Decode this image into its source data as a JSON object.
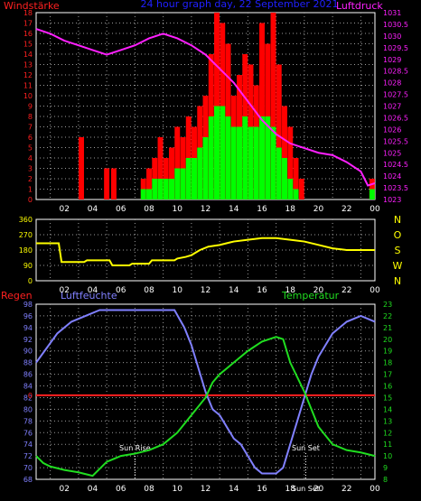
{
  "title": "24 hour graph day, 22 September 2021",
  "colors": {
    "wind_axis": "#ff2020",
    "pressure": "#ff20ff",
    "title": "#2020ff",
    "dir_axis": "#ffff00",
    "dir_line": "#ffff00",
    "humidity": "#8080ff",
    "temperature": "#20dd20",
    "rain": "#ff2020",
    "gust": "#ff0000",
    "avg_wind": "#00ff00",
    "frame": "#ffffff",
    "grid": "#9a9a9a"
  },
  "x_ticks": [
    "02",
    "04",
    "06",
    "08",
    "10",
    "12",
    "14",
    "16",
    "18",
    "20",
    "22",
    "00"
  ],
  "chart_data": [
    {
      "type": "bar",
      "name": "wind_pressure",
      "y_left_label": "Windstärke",
      "y_right_label": "Luftdruck",
      "y_left_ticks": [
        "0",
        "1",
        "2",
        "3",
        "4",
        "5",
        "6",
        "7",
        "8",
        "9",
        "10",
        "11",
        "12",
        "13",
        "14",
        "15",
        "16",
        "17",
        "18"
      ],
      "y_right_ticks": [
        "1031",
        "1030.5",
        "1030",
        "1029.5",
        "1029",
        "1028.5",
        "1028",
        "1027.5",
        "1027",
        "1026.5",
        "1026",
        "1025.5",
        "1025",
        "1024.5",
        "1024",
        "1023.5",
        "1023"
      ],
      "ylim_left": [
        0,
        18
      ],
      "ylim_right": [
        1023,
        1031
      ],
      "gust": [
        [
          3.2,
          6
        ],
        [
          5.0,
          3
        ],
        [
          5.5,
          3
        ],
        [
          7.6,
          2
        ],
        [
          8.0,
          3
        ],
        [
          8.4,
          4
        ],
        [
          8.8,
          6
        ],
        [
          9.2,
          4
        ],
        [
          9.6,
          5
        ],
        [
          10.0,
          7
        ],
        [
          10.4,
          6
        ],
        [
          10.8,
          8
        ],
        [
          11.2,
          7
        ],
        [
          11.6,
          9
        ],
        [
          12.0,
          10
        ],
        [
          12.4,
          14
        ],
        [
          12.8,
          18
        ],
        [
          13.2,
          17
        ],
        [
          13.6,
          15
        ],
        [
          14.0,
          10
        ],
        [
          14.4,
          12
        ],
        [
          14.8,
          14
        ],
        [
          15.2,
          13
        ],
        [
          15.6,
          11
        ],
        [
          16.0,
          17
        ],
        [
          16.4,
          15
        ],
        [
          16.8,
          18
        ],
        [
          17.2,
          13
        ],
        [
          17.6,
          9
        ],
        [
          18.0,
          7
        ],
        [
          18.4,
          4
        ],
        [
          18.8,
          2
        ],
        [
          23.8,
          2
        ]
      ],
      "avg": [
        [
          7.6,
          1
        ],
        [
          8.0,
          1
        ],
        [
          8.4,
          2
        ],
        [
          8.8,
          2
        ],
        [
          9.2,
          2
        ],
        [
          9.6,
          2
        ],
        [
          10.0,
          3
        ],
        [
          10.4,
          3
        ],
        [
          10.8,
          4
        ],
        [
          11.2,
          4
        ],
        [
          11.6,
          5
        ],
        [
          12.0,
          6
        ],
        [
          12.4,
          8
        ],
        [
          12.8,
          9
        ],
        [
          13.2,
          9
        ],
        [
          13.6,
          8
        ],
        [
          14.0,
          7
        ],
        [
          14.4,
          7
        ],
        [
          14.8,
          8
        ],
        [
          15.2,
          7
        ],
        [
          15.6,
          7
        ],
        [
          16.0,
          8
        ],
        [
          16.4,
          8
        ],
        [
          16.8,
          7
        ],
        [
          17.2,
          5
        ],
        [
          17.6,
          4
        ],
        [
          18.0,
          2
        ],
        [
          18.4,
          1
        ],
        [
          23.8,
          1
        ]
      ],
      "pressure": [
        [
          0,
          1030.3
        ],
        [
          1,
          1030.1
        ],
        [
          2,
          1029.8
        ],
        [
          3,
          1029.6
        ],
        [
          4,
          1029.4
        ],
        [
          5,
          1029.2
        ],
        [
          6,
          1029.4
        ],
        [
          7,
          1029.6
        ],
        [
          8,
          1029.9
        ],
        [
          9,
          1030.1
        ],
        [
          10,
          1029.9
        ],
        [
          11,
          1029.6
        ],
        [
          12,
          1029.2
        ],
        [
          13,
          1028.6
        ],
        [
          14,
          1028.0
        ],
        [
          15,
          1027.2
        ],
        [
          16,
          1026.4
        ],
        [
          17,
          1025.8
        ],
        [
          18,
          1025.4
        ],
        [
          19,
          1025.2
        ],
        [
          20,
          1025.0
        ],
        [
          21,
          1024.9
        ],
        [
          22,
          1024.6
        ],
        [
          23,
          1024.2
        ],
        [
          23.5,
          1023.6
        ],
        [
          24,
          1023.7
        ]
      ]
    },
    {
      "type": "line",
      "name": "wind_direction",
      "y_left_ticks": [
        "0",
        "90",
        "180",
        "270",
        "360"
      ],
      "y_right_ticks": [
        "N",
        "W",
        "S",
        "O",
        "N"
      ],
      "ylim": [
        0,
        360
      ],
      "values": [
        [
          0,
          220
        ],
        [
          1.6,
          220
        ],
        [
          1.8,
          110
        ],
        [
          3.4,
          110
        ],
        [
          3.6,
          120
        ],
        [
          5.2,
          120
        ],
        [
          5.4,
          90
        ],
        [
          6.6,
          90
        ],
        [
          6.8,
          100
        ],
        [
          8.0,
          100
        ],
        [
          8.2,
          120
        ],
        [
          9.0,
          120
        ],
        [
          9.8,
          120
        ],
        [
          10.0,
          130
        ],
        [
          10.6,
          140
        ],
        [
          11.0,
          150
        ],
        [
          11.6,
          180
        ],
        [
          12.2,
          200
        ],
        [
          13.0,
          210
        ],
        [
          14.0,
          230
        ],
        [
          15.0,
          240
        ],
        [
          16.0,
          250
        ],
        [
          17.0,
          250
        ],
        [
          18.0,
          240
        ],
        [
          19.0,
          230
        ],
        [
          20.0,
          210
        ],
        [
          21.0,
          190
        ],
        [
          22.0,
          180
        ],
        [
          24.0,
          180
        ]
      ]
    },
    {
      "type": "line",
      "name": "humidity_temperature",
      "rain_label": "Regen",
      "humidity_label": "Luftfeuchte",
      "temperature_label": "Temperatur",
      "y_left_ticks": [
        "68",
        "70",
        "72",
        "74",
        "76",
        "78",
        "80",
        "82",
        "84",
        "86",
        "88",
        "90",
        "92",
        "94",
        "96",
        "98"
      ],
      "y_right_ticks": [
        "8",
        "9",
        "10",
        "11",
        "12",
        "13",
        "14",
        "15",
        "16",
        "17",
        "18",
        "19",
        "20",
        "21",
        "22",
        "23"
      ],
      "rain_tick": "0",
      "ylim_humidity": [
        68,
        98
      ],
      "ylim_temperature": [
        8,
        23
      ],
      "annotations": [
        "Sun Rise",
        "Sun Set",
        "Sun Set"
      ],
      "humidity": [
        [
          0,
          88
        ],
        [
          0.6,
          90
        ],
        [
          1.5,
          93
        ],
        [
          2.5,
          95
        ],
        [
          3.5,
          96
        ],
        [
          4.5,
          97
        ],
        [
          6,
          97
        ],
        [
          8,
          97
        ],
        [
          9.8,
          97
        ],
        [
          10.5,
          94
        ],
        [
          11,
          91
        ],
        [
          11.5,
          87
        ],
        [
          12,
          83
        ],
        [
          12.5,
          80
        ],
        [
          13,
          79
        ],
        [
          13.5,
          77
        ],
        [
          14,
          75
        ],
        [
          14.5,
          74
        ],
        [
          15,
          72
        ],
        [
          15.5,
          70
        ],
        [
          16,
          69
        ],
        [
          17,
          69
        ],
        [
          17.5,
          70
        ],
        [
          18,
          74
        ],
        [
          18.5,
          78
        ],
        [
          19,
          82
        ],
        [
          19.5,
          86
        ],
        [
          20,
          89
        ],
        [
          20.5,
          91
        ],
        [
          21,
          93
        ],
        [
          21.5,
          94
        ],
        [
          22,
          95
        ],
        [
          23,
          96
        ],
        [
          24,
          95
        ]
      ],
      "temperature": [
        [
          0,
          10
        ],
        [
          0.5,
          9.4
        ],
        [
          1,
          9.1
        ],
        [
          2,
          8.8
        ],
        [
          3,
          8.6
        ],
        [
          4,
          8.3
        ],
        [
          5,
          9.5
        ],
        [
          6,
          10.0
        ],
        [
          7,
          10.2
        ],
        [
          8,
          10.5
        ],
        [
          9,
          11.0
        ],
        [
          10,
          12.0
        ],
        [
          11,
          13.5
        ],
        [
          12,
          15.0
        ],
        [
          12.5,
          16.3
        ],
        [
          13,
          17.0
        ],
        [
          14,
          18.0
        ],
        [
          15,
          19.0
        ],
        [
          16,
          19.8
        ],
        [
          17,
          20.2
        ],
        [
          17.5,
          20.0
        ],
        [
          18,
          18.0
        ],
        [
          19,
          15.5
        ],
        [
          19.5,
          14.0
        ],
        [
          20,
          12.5
        ],
        [
          21,
          11.0
        ],
        [
          22,
          10.5
        ],
        [
          23,
          10.3
        ],
        [
          24,
          10.0
        ]
      ]
    }
  ]
}
